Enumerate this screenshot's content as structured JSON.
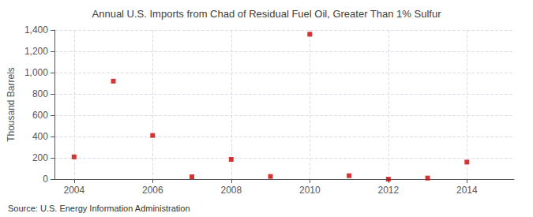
{
  "chart_data": {
    "type": "scatter",
    "title": "Annual U.S. Imports from Chad of Residual Fuel Oil, Greater Than 1% Sulfur",
    "ylabel": "Thousand Barrels",
    "annotation": "Source: U.S. Energy Information Administration",
    "x": [
      2004,
      2005,
      2006,
      2007,
      2008,
      2009,
      2010,
      2011,
      2012,
      2013,
      2014
    ],
    "values": [
      209,
      920,
      410,
      22,
      185,
      25,
      1360,
      32,
      0,
      10,
      160
    ],
    "color": "#cc0000",
    "marker": "square",
    "xlim": [
      2003.5,
      2015.2
    ],
    "xticks": [
      2004,
      2006,
      2008,
      2010,
      2012,
      2014
    ],
    "ylim": [
      0,
      1400
    ],
    "yticks": [
      0,
      200,
      400,
      600,
      800,
      {
        "value": 1000,
        "label": "1,000"
      },
      {
        "value": 1200,
        "label": "1,200"
      },
      {
        "value": 1400,
        "label": "1,400"
      }
    ],
    "grid": true
  }
}
